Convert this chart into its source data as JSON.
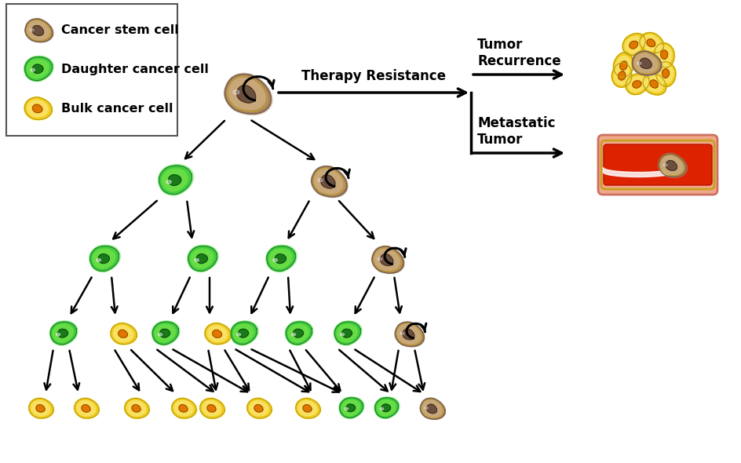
{
  "background_color": "#ffffff",
  "legend_items": [
    "Cancer stem cell",
    "Daughter cancer cell",
    "Bulk cancer cell"
  ],
  "cell_colors": {
    "stem": {
      "outer": "#a08060",
      "mid": "#c8a878",
      "inner": "#6b5040",
      "edge": "#7a6050",
      "gold_ring": "#c8a030"
    },
    "daughter": {
      "outer": "#44cc44",
      "mid": "#88ee44",
      "inner": "#1a7a1a",
      "edge": "#228822",
      "glow": "#ccffcc"
    },
    "bulk": {
      "outer": "#f0cc20",
      "mid": "#f8e060",
      "inner": "#e07800",
      "edge": "#c0a010"
    }
  },
  "therapy_resistance_text": "Therapy Resistance",
  "tumor_recurrence_text": "Tumor\nRecurrence",
  "metastatic_tumor_text": "Metastatic\nTumor",
  "label_fontsize": 12,
  "legend_fontsize": 11.5,
  "figsize": [
    9.45,
    5.9
  ],
  "dpi": 100
}
